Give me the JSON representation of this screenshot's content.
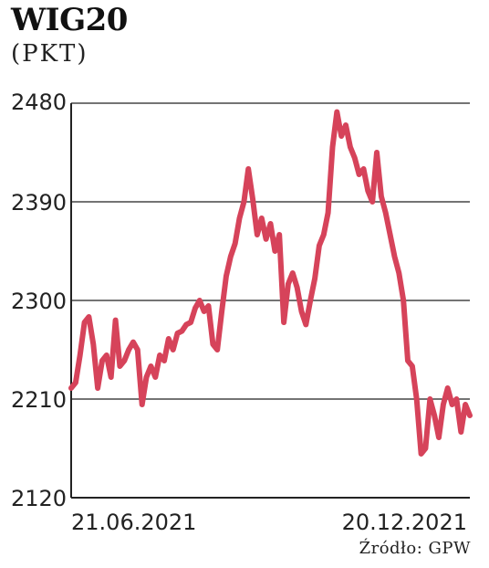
{
  "chart_data": {
    "type": "line",
    "title": "WIG20",
    "unit": "(PKT)",
    "source": "Źródło: GPW",
    "ylim": [
      2120,
      2480
    ],
    "yticks": [
      2480,
      2390,
      2300,
      2210,
      2120
    ],
    "grid": true,
    "xtick_labels": [
      "21.06.2021",
      "20.12.2021"
    ],
    "line_color": "#d6435a",
    "values": [
      2220,
      2225,
      2250,
      2280,
      2285,
      2260,
      2220,
      2245,
      2250,
      2230,
      2282,
      2240,
      2245,
      2255,
      2262,
      2255,
      2205,
      2230,
      2240,
      2230,
      2250,
      2245,
      2265,
      2255,
      2270,
      2272,
      2278,
      2280,
      2293,
      2300,
      2290,
      2295,
      2260,
      2255,
      2290,
      2322,
      2340,
      2352,
      2375,
      2390,
      2420,
      2392,
      2360,
      2375,
      2356,
      2370,
      2345,
      2360,
      2280,
      2315,
      2325,
      2312,
      2290,
      2278,
      2300,
      2320,
      2350,
      2360,
      2380,
      2440,
      2472,
      2450,
      2460,
      2440,
      2430,
      2415,
      2420,
      2400,
      2390,
      2435,
      2395,
      2380,
      2360,
      2340,
      2325,
      2300,
      2245,
      2240,
      2210,
      2160,
      2165,
      2210,
      2195,
      2175,
      2205,
      2220,
      2205,
      2210,
      2180,
      2205,
      2195
    ]
  }
}
